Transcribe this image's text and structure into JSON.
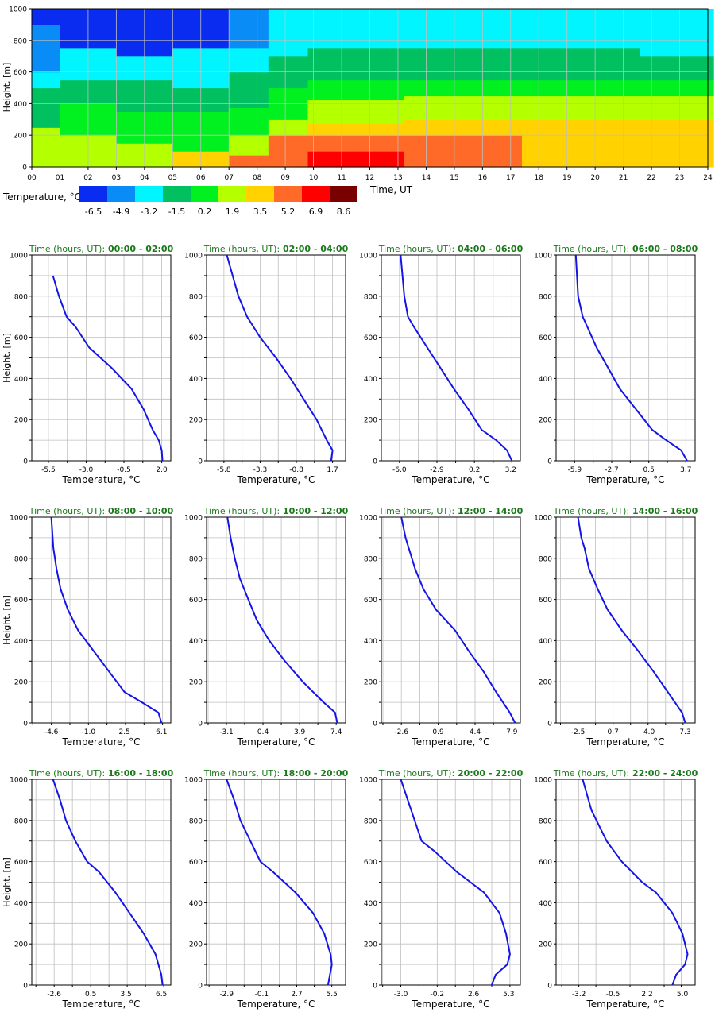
{
  "chart_data": [
    {
      "type": "heatmap",
      "xlabel": "Time, UT",
      "ylabel": "Height, [m]",
      "x_ticks": [
        "00",
        "01",
        "02",
        "03",
        "04",
        "05",
        "06",
        "07",
        "08",
        "09",
        "10",
        "11",
        "12",
        "13",
        "14",
        "15",
        "16",
        "17",
        "18",
        "19",
        "20",
        "21",
        "22",
        "23",
        "24"
      ],
      "y_ticks": [
        "0",
        "200",
        "400",
        "600",
        "800",
        "1000"
      ],
      "xlim": [
        0,
        24
      ],
      "ylim": [
        0,
        1000
      ],
      "grid": true,
      "colorbar": {
        "label": "Temperature, °C",
        "ticks": [
          "-6.5",
          "-4.9",
          "-3.2",
          "-1.5",
          "0.2",
          "1.9",
          "3.5",
          "5.2",
          "6.9",
          "8.6"
        ],
        "colors": [
          "#0a2cf0",
          "#0a8cf6",
          "#00f5ff",
          "#00c060",
          "#00f020",
          "#b4ff00",
          "#ffd200",
          "#ff6a28",
          "#ff0000",
          "#7a0000"
        ]
      },
      "bands": [
        {
          "time": 0,
          "heights": [
            [
              0,
              250,
              5
            ],
            [
              250,
              500,
              3
            ],
            [
              500,
              600,
              2
            ],
            [
              600,
              900,
              1
            ],
            [
              900,
              1000,
              0
            ]
          ]
        },
        {
          "time": 2,
          "heights": [
            [
              0,
              200,
              5
            ],
            [
              200,
              400,
              4
            ],
            [
              400,
              550,
              3
            ],
            [
              550,
              750,
              2
            ],
            [
              750,
              1000,
              0
            ]
          ]
        },
        {
          "time": 4,
          "heights": [
            [
              0,
              150,
              5
            ],
            [
              150,
              350,
              4
            ],
            [
              350,
              550,
              3
            ],
            [
              550,
              700,
              2
            ],
            [
              700,
              1000,
              0
            ]
          ]
        },
        {
          "time": 6,
          "heights": [
            [
              0,
              100,
              6
            ],
            [
              100,
              350,
              4
            ],
            [
              350,
              500,
              3
            ],
            [
              500,
              750,
              2
            ],
            [
              750,
              1000,
              0
            ]
          ]
        },
        {
          "time": 8,
          "heights": [
            [
              0,
              70,
              7
            ],
            [
              70,
              200,
              5
            ],
            [
              200,
              380,
              4
            ],
            [
              380,
              600,
              3
            ],
            [
              600,
              750,
              2
            ],
            [
              750,
              1000,
              1
            ]
          ]
        },
        {
          "time": 9,
          "heights": [
            [
              0,
              200,
              7
            ],
            [
              200,
              300,
              5
            ],
            [
              300,
              500,
              4
            ],
            [
              500,
              700,
              3
            ],
            [
              700,
              1000,
              2
            ]
          ]
        },
        {
          "time": 10.5,
          "heights": [
            [
              0,
              100,
              8
            ],
            [
              100,
              200,
              7
            ],
            [
              200,
              280,
              6
            ],
            [
              280,
              420,
              5
            ],
            [
              420,
              550,
              4
            ],
            [
              550,
              750,
              3
            ],
            [
              750,
              1000,
              2
            ]
          ]
        },
        {
          "time": 15.7,
          "heights": [
            [
              0,
              200,
              7
            ],
            [
              200,
              300,
              6
            ],
            [
              300,
              450,
              5
            ],
            [
              450,
              550,
              4
            ],
            [
              550,
              750,
              3
            ],
            [
              750,
              1000,
              2
            ]
          ]
        },
        {
          "time": 19,
          "heights": [
            [
              0,
              150,
              6
            ],
            [
              150,
              300,
              6
            ],
            [
              300,
              450,
              5
            ],
            [
              450,
              550,
              4
            ],
            [
              550,
              750,
              3
            ],
            [
              750,
              1000,
              2
            ]
          ]
        },
        {
          "time": 24,
          "heights": [
            [
              0,
              150,
              6
            ],
            [
              150,
              300,
              6
            ],
            [
              300,
              450,
              5
            ],
            [
              450,
              550,
              4
            ],
            [
              550,
              700,
              3
            ],
            [
              700,
              1000,
              2
            ]
          ]
        }
      ]
    },
    {
      "type": "line",
      "title_prefix": "Time (hours, UT):",
      "title_range": " 00:00 - 02:00",
      "xlabel": "Temperature, °C",
      "ylabel": "Height, [m]",
      "x_ticks": [
        -5.5,
        -3.0,
        -0.5,
        2.0
      ],
      "x_tick_labels": [
        "-5.5",
        "-3.0",
        "-0.5",
        "2.0"
      ],
      "xlim": [
        -6.6,
        2.6
      ],
      "ylim": [
        0,
        1000
      ],
      "x": [
        2.05,
        2.0,
        1.8,
        1.4,
        0.8,
        0.0,
        -1.3,
        -2.8,
        -3.7,
        -4.3,
        -4.8,
        -5.2
      ],
      "y": [
        0,
        50,
        100,
        150,
        250,
        350,
        450,
        550,
        650,
        700,
        800,
        900
      ]
    },
    {
      "type": "line",
      "title_prefix": "Time (hours, UT):",
      "title_range": " 02:00 - 04:00",
      "xlabel": "Temperature, °C",
      "ylabel": "",
      "x_ticks": [
        -5.8,
        -3.3,
        -0.8,
        1.7
      ],
      "x_tick_labels": [
        "-5.8",
        "-3.3",
        "-0.8",
        "1.7"
      ],
      "xlim": [
        -7.0,
        2.6
      ],
      "ylim": [
        0,
        1000
      ],
      "x": [
        1.6,
        1.7,
        1.3,
        0.6,
        -0.3,
        -1.2,
        -2.2,
        -3.3,
        -4.2,
        -4.8,
        -5.2,
        -5.6
      ],
      "y": [
        0,
        50,
        100,
        200,
        300,
        400,
        500,
        600,
        700,
        800,
        900,
        1000
      ]
    },
    {
      "type": "line",
      "title_prefix": "Time (hours, UT):",
      "title_range": " 04:00 - 06:00",
      "xlabel": "Temperature, °C",
      "ylabel": "",
      "x_ticks": [
        -6.0,
        -2.9,
        0.2,
        3.2
      ],
      "x_tick_labels": [
        "-6.0",
        "-2.9",
        "0.2",
        "3.2"
      ],
      "xlim": [
        -7.5,
        4.0
      ],
      "ylim": [
        0,
        1000
      ],
      "x": [
        3.3,
        2.9,
        2.0,
        0.8,
        -0.3,
        -1.5,
        -2.6,
        -3.7,
        -4.8,
        -5.3,
        -5.6,
        -5.9
      ],
      "y": [
        0,
        50,
        100,
        150,
        250,
        350,
        450,
        550,
        650,
        700,
        800,
        1000
      ]
    },
    {
      "type": "line",
      "title_prefix": "Time (hours, UT):",
      "title_range": " 06:00 - 08:00",
      "xlabel": "Temperature, °C",
      "ylabel": "",
      "x_ticks": [
        -5.9,
        -2.7,
        0.5,
        3.7
      ],
      "x_tick_labels": [
        "-5.9",
        "-2.7",
        "0.5",
        "3.7"
      ],
      "xlim": [
        -7.5,
        4.5
      ],
      "ylim": [
        0,
        1000
      ],
      "x": [
        3.8,
        3.3,
        2.0,
        0.8,
        -0.6,
        -2.0,
        -3.0,
        -4.0,
        -4.8,
        -5.2,
        -5.6,
        -5.8
      ],
      "y": [
        0,
        50,
        100,
        150,
        250,
        350,
        450,
        550,
        650,
        700,
        800,
        1000
      ]
    },
    {
      "type": "line",
      "title_prefix": "Time (hours, UT):",
      "title_range": " 08:00 - 10:00",
      "xlabel": "Temperature, °C",
      "ylabel": "Height, [m]",
      "x_ticks": [
        -4.6,
        -1.0,
        2.5,
        6.1
      ],
      "x_tick_labels": [
        "-4.6",
        "-1.0",
        "2.5",
        "6.1"
      ],
      "xlim": [
        -6.5,
        7.0
      ],
      "ylim": [
        0,
        1000
      ],
      "x": [
        6.1,
        5.8,
        4.2,
        2.5,
        1.0,
        -0.5,
        -2.0,
        -3.0,
        -3.7,
        -4.1,
        -4.4,
        -4.6
      ],
      "y": [
        0,
        50,
        100,
        150,
        250,
        350,
        450,
        550,
        650,
        750,
        850,
        1000
      ]
    },
    {
      "type": "line",
      "title_prefix": "Time (hours, UT):",
      "title_range": " 10:00 - 12:00",
      "xlabel": "Temperature, °C",
      "ylabel": "",
      "x_ticks": [
        -3.1,
        0.4,
        3.9,
        7.4
      ],
      "x_tick_labels": [
        "-3.1",
        "0.4",
        "3.9",
        "7.4"
      ],
      "xlim": [
        -5.0,
        8.3
      ],
      "ylim": [
        0,
        1000
      ],
      "x": [
        7.5,
        7.3,
        6.2,
        4.2,
        2.5,
        1.0,
        -0.2,
        -1.0,
        -1.8,
        -2.3,
        -2.7,
        -3.0
      ],
      "y": [
        0,
        50,
        100,
        200,
        300,
        400,
        500,
        600,
        700,
        800,
        900,
        1000
      ]
    },
    {
      "type": "line",
      "title_prefix": "Time (hours, UT):",
      "title_range": " 12:00 - 14:00",
      "xlabel": "Temperature, °C",
      "ylabel": "",
      "x_ticks": [
        -2.6,
        0.9,
        4.4,
        7.9
      ],
      "x_tick_labels": [
        "-2.6",
        "0.9",
        "4.4",
        "7.9"
      ],
      "xlim": [
        -4.5,
        8.7
      ],
      "ylim": [
        0,
        1000
      ],
      "x": [
        8.2,
        7.7,
        6.4,
        5.2,
        3.8,
        2.5,
        0.7,
        -0.5,
        -1.3,
        -1.9,
        -2.2,
        -2.6
      ],
      "y": [
        0,
        50,
        150,
        250,
        350,
        450,
        550,
        650,
        750,
        850,
        900,
        1000
      ]
    },
    {
      "type": "line",
      "title_prefix": "Time (hours, UT):",
      "title_range": " 14:00 - 16:00",
      "xlabel": "Temperature, °C",
      "ylabel": "",
      "x_ticks": [
        -2.5,
        0.7,
        4.0,
        7.3
      ],
      "x_tick_labels": [
        "-2.5",
        "0.7",
        "4.0",
        "7.3"
      ],
      "xlim": [
        -4.5,
        8.2
      ],
      "ylim": [
        0,
        1000
      ],
      "x": [
        7.3,
        7.0,
        5.7,
        4.4,
        3.0,
        1.5,
        0.2,
        -0.7,
        -1.5,
        -1.9,
        -2.2,
        -2.5
      ],
      "y": [
        0,
        50,
        150,
        250,
        350,
        450,
        550,
        650,
        750,
        850,
        900,
        1000
      ]
    },
    {
      "type": "line",
      "title_prefix": "Time (hours, UT):",
      "title_range": " 16:00 - 18:00",
      "xlabel": "Temperature, °C",
      "ylabel": "Height, [m]",
      "x_ticks": [
        -2.6,
        0.5,
        3.5,
        6.5
      ],
      "x_tick_labels": [
        "-2.6",
        "0.5",
        "3.5",
        "6.5"
      ],
      "xlim": [
        -4.5,
        7.3
      ],
      "ylim": [
        0,
        1000
      ],
      "x": [
        6.6,
        6.5,
        6.0,
        5.0,
        3.8,
        2.6,
        1.2,
        0.2,
        -0.8,
        -1.6,
        -2.1,
        -2.7
      ],
      "y": [
        0,
        50,
        150,
        250,
        350,
        450,
        550,
        600,
        700,
        800,
        900,
        1000
      ]
    },
    {
      "type": "line",
      "title_prefix": "Time (hours, UT):",
      "title_range": " 18:00 - 20:00",
      "xlabel": "Temperature, °C",
      "ylabel": "",
      "x_ticks": [
        -2.9,
        -0.1,
        2.7,
        5.5
      ],
      "x_tick_labels": [
        "-2.9",
        "-0.1",
        "2.7",
        "5.5"
      ],
      "xlim": [
        -4.5,
        6.6
      ],
      "ylim": [
        0,
        1000
      ],
      "x": [
        5.2,
        5.5,
        5.4,
        4.9,
        4.0,
        2.6,
        0.8,
        -0.2,
        -1.0,
        -1.8,
        -2.3,
        -2.9
      ],
      "y": [
        0,
        100,
        150,
        250,
        350,
        450,
        550,
        600,
        700,
        800,
        900,
        1000
      ]
    },
    {
      "type": "line",
      "title_prefix": "Time (hours, UT):",
      "title_range": " 20:00 - 22:00",
      "xlabel": "Temperature, °C",
      "ylabel": "",
      "x_ticks": [
        -3.0,
        -0.2,
        2.6,
        5.3
      ],
      "x_tick_labels": [
        "-3.0",
        "-0.2",
        "2.6",
        "5.3"
      ],
      "xlim": [
        -4.5,
        6.2
      ],
      "ylim": [
        0,
        1000
      ],
      "x": [
        4.0,
        4.3,
        5.2,
        5.4,
        5.1,
        4.6,
        3.4,
        1.3,
        -0.4,
        -1.4,
        -2.2,
        -3.0
      ],
      "y": [
        0,
        50,
        100,
        150,
        250,
        350,
        450,
        550,
        650,
        700,
        850,
        1000
      ]
    },
    {
      "type": "line",
      "title_prefix": "Time (hours, UT):",
      "title_range": " 22:00 - 24:00",
      "xlabel": "Temperature, °C",
      "ylabel": "",
      "x_ticks": [
        -3.2,
        -0.5,
        2.2,
        5.0
      ],
      "x_tick_labels": [
        "-3.2",
        "-0.5",
        "2.2",
        "5.0"
      ],
      "xlim": [
        -5.0,
        6.0
      ],
      "ylim": [
        0,
        1000
      ],
      "x": [
        4.2,
        4.5,
        5.2,
        5.4,
        5.0,
        4.2,
        2.9,
        1.8,
        0.2,
        -1.0,
        -2.2,
        -2.9
      ],
      "y": [
        0,
        50,
        100,
        150,
        250,
        350,
        450,
        500,
        600,
        700,
        850,
        1000
      ]
    }
  ]
}
